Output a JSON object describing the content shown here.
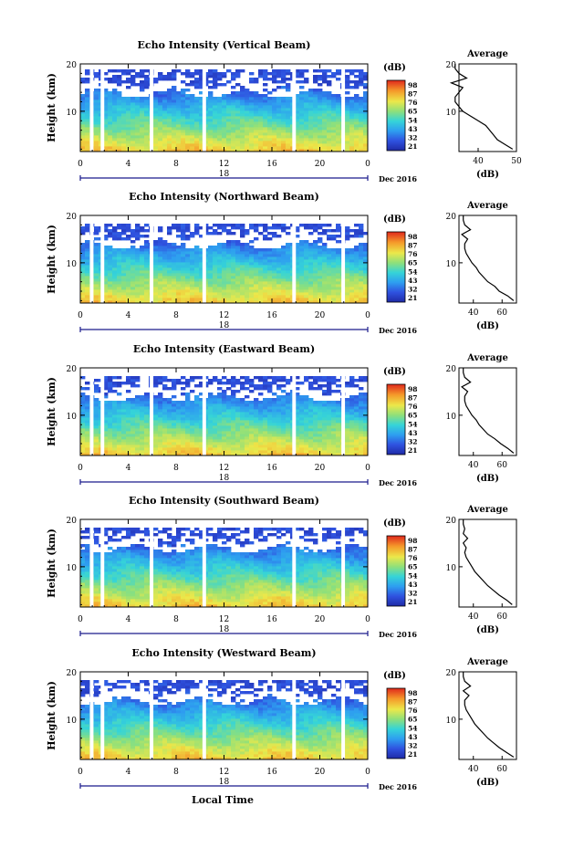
{
  "figure": {
    "bottom_xlabel": "Local Time"
  },
  "panels": [
    {
      "title": "Echo Intensity (Vertical Beam)",
      "ylabel": "Height (km)",
      "date_center": "18",
      "date_right": "Dec 2016",
      "colorbar_label": "(dB)",
      "avg_title": "Average",
      "avg_xlabel": "(dB)",
      "avg_xticks": [
        "40",
        "50"
      ]
    },
    {
      "title": "Echo Intensity (Northward Beam)",
      "ylabel": "Height (km)",
      "date_center": "18",
      "date_right": "Dec 2016",
      "colorbar_label": "(dB)",
      "avg_title": "Average",
      "avg_xlabel": "(dB)",
      "avg_xticks": [
        "40",
        "60"
      ]
    },
    {
      "title": "Echo Intensity (Eastward Beam)",
      "ylabel": "Height (km)",
      "date_center": "18",
      "date_right": "Dec 2016",
      "colorbar_label": "(dB)",
      "avg_title": "Average",
      "avg_xlabel": "(dB)",
      "avg_xticks": [
        "40",
        "60"
      ]
    },
    {
      "title": "Echo Intensity (Southward Beam)",
      "ylabel": "Height (km)",
      "date_center": "18",
      "date_right": "Dec 2016",
      "colorbar_label": "(dB)",
      "avg_title": "Average",
      "avg_xlabel": "(dB)",
      "avg_xticks": [
        "40",
        "60"
      ]
    },
    {
      "title": "Echo Intensity (Westward Beam)",
      "ylabel": "Height (km)",
      "date_center": "18",
      "date_right": "Dec 2016",
      "colorbar_label": "(dB)",
      "avg_title": "Average",
      "avg_xlabel": "(dB)",
      "avg_xticks": [
        "40",
        "60"
      ]
    }
  ],
  "chart_data": [
    {
      "type": "heatmap",
      "title": "Echo Intensity (Vertical Beam)",
      "xlabel": "Local Time",
      "ylabel": "Height (km)",
      "xlim": [
        0,
        24
      ],
      "ylim": [
        1.5,
        20
      ],
      "xticks": [
        "0",
        "4",
        "8",
        "12",
        "16",
        "20",
        "0"
      ],
      "yticks": [
        "10",
        "20"
      ],
      "colorbar_ticks": [
        "21",
        "32",
        "43",
        "54",
        "65",
        "76",
        "87",
        "98"
      ],
      "data_gaps_hours": [
        [
          0.8,
          1.1
        ],
        [
          1.7,
          2.0
        ],
        [
          5.8,
          6.1
        ],
        [
          10.2,
          10.5
        ],
        [
          17.7,
          18.0
        ],
        [
          21.8,
          22.1
        ]
      ],
      "profile": {
        "name": "Average",
        "xlim": [
          35,
          50
        ],
        "height_km": [
          2,
          3,
          4,
          5,
          6,
          7,
          8,
          9,
          10,
          11,
          12,
          13,
          14,
          15,
          16,
          17,
          18,
          19,
          20
        ],
        "intensity_db": [
          49,
          47,
          45,
          44,
          43,
          42,
          40,
          38,
          36,
          35,
          34,
          34,
          35,
          36,
          33,
          37,
          35,
          34,
          34
        ]
      }
    },
    {
      "type": "heatmap",
      "title": "Echo Intensity (Northward Beam)",
      "xlabel": "Local Time",
      "ylabel": "Height (km)",
      "xlim": [
        0,
        24
      ],
      "ylim": [
        1.5,
        20
      ],
      "xticks": [
        "0",
        "4",
        "8",
        "12",
        "16",
        "20",
        "0"
      ],
      "yticks": [
        "10",
        "20"
      ],
      "colorbar_ticks": [
        "21",
        "32",
        "43",
        "54",
        "65",
        "76",
        "87",
        "98"
      ],
      "data_gaps_hours": [
        [
          0.8,
          1.1
        ],
        [
          1.7,
          2.0
        ],
        [
          5.8,
          6.1
        ],
        [
          10.2,
          10.5
        ],
        [
          17.7,
          18.0
        ],
        [
          21.8,
          22.1
        ]
      ],
      "profile": {
        "name": "Average",
        "xlim": [
          30,
          70
        ],
        "height_km": [
          2,
          3,
          4,
          5,
          6,
          7,
          8,
          9,
          10,
          11,
          12,
          13,
          14,
          15,
          16,
          17,
          18,
          19,
          20
        ],
        "intensity_db": [
          68,
          64,
          58,
          55,
          50,
          47,
          44,
          42,
          39,
          37,
          35,
          34,
          34,
          36,
          32,
          38,
          34,
          33,
          33
        ]
      }
    },
    {
      "type": "heatmap",
      "title": "Echo Intensity (Eastward Beam)",
      "xlabel": "Local Time",
      "ylabel": "Height (km)",
      "xlim": [
        0,
        24
      ],
      "ylim": [
        1.5,
        20
      ],
      "xticks": [
        "0",
        "4",
        "8",
        "12",
        "16",
        "20",
        "0"
      ],
      "yticks": [
        "10",
        "20"
      ],
      "colorbar_ticks": [
        "21",
        "32",
        "43",
        "54",
        "65",
        "76",
        "87",
        "98"
      ],
      "data_gaps_hours": [
        [
          0.8,
          1.1
        ],
        [
          1.7,
          2.0
        ],
        [
          5.8,
          6.1
        ],
        [
          10.2,
          10.5
        ],
        [
          17.7,
          18.0
        ],
        [
          21.8,
          22.1
        ]
      ],
      "profile": {
        "name": "Average",
        "xlim": [
          30,
          70
        ],
        "height_km": [
          2,
          3,
          4,
          5,
          6,
          7,
          8,
          9,
          10,
          11,
          12,
          13,
          14,
          15,
          16,
          17,
          18,
          19,
          20
        ],
        "intensity_db": [
          68,
          64,
          59,
          55,
          50,
          47,
          44,
          42,
          39,
          37,
          35,
          34,
          34,
          36,
          32,
          38,
          34,
          33,
          33
        ]
      }
    },
    {
      "type": "heatmap",
      "title": "Echo Intensity (Southward Beam)",
      "xlabel": "Local Time",
      "ylabel": "Height (km)",
      "xlim": [
        0,
        24
      ],
      "ylim": [
        1.5,
        20
      ],
      "xticks": [
        "0",
        "4",
        "8",
        "12",
        "16",
        "20",
        "0"
      ],
      "yticks": [
        "10",
        "20"
      ],
      "colorbar_ticks": [
        "21",
        "32",
        "43",
        "54",
        "65",
        "76",
        "87",
        "98"
      ],
      "data_gaps_hours": [
        [
          0.8,
          1.1
        ],
        [
          1.7,
          2.0
        ],
        [
          5.8,
          6.1
        ],
        [
          10.2,
          10.5
        ],
        [
          17.7,
          18.0
        ],
        [
          21.8,
          22.1
        ]
      ],
      "profile": {
        "name": "Average",
        "xlim": [
          30,
          70
        ],
        "height_km": [
          2,
          3,
          4,
          5,
          6,
          7,
          8,
          9,
          10,
          11,
          12,
          13,
          14,
          15,
          16,
          17,
          18,
          19,
          20
        ],
        "intensity_db": [
          67,
          63,
          58,
          54,
          50,
          47,
          44,
          41,
          39,
          37,
          35,
          34,
          35,
          33,
          36,
          33,
          34,
          33,
          33
        ]
      }
    },
    {
      "type": "heatmap",
      "title": "Echo Intensity (Westward Beam)",
      "xlabel": "Local Time",
      "ylabel": "Height (km)",
      "xlim": [
        0,
        24
      ],
      "ylim": [
        1.5,
        20
      ],
      "xticks": [
        "0",
        "4",
        "8",
        "12",
        "16",
        "20",
        "0"
      ],
      "yticks": [
        "10",
        "20"
      ],
      "colorbar_ticks": [
        "21",
        "32",
        "43",
        "54",
        "65",
        "76",
        "87",
        "98"
      ],
      "data_gaps_hours": [
        [
          0.8,
          1.1
        ],
        [
          1.7,
          2.0
        ],
        [
          5.8,
          6.1
        ],
        [
          10.2,
          10.5
        ],
        [
          17.7,
          18.0
        ],
        [
          21.8,
          22.1
        ]
      ],
      "profile": {
        "name": "Average",
        "xlim": [
          30,
          70
        ],
        "height_km": [
          2,
          3,
          4,
          5,
          6,
          7,
          8,
          9,
          10,
          11,
          12,
          13,
          14,
          15,
          16,
          17,
          18,
          19,
          20
        ],
        "intensity_db": [
          68,
          63,
          58,
          54,
          50,
          47,
          44,
          41,
          39,
          37,
          35,
          34,
          34,
          37,
          33,
          38,
          34,
          33,
          33
        ]
      }
    }
  ]
}
